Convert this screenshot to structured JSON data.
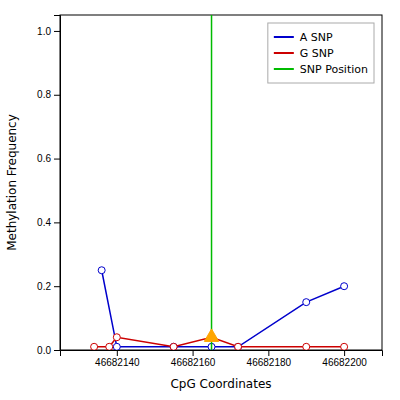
{
  "chart_data": {
    "type": "line",
    "xlabel": "CpG Coordinates",
    "ylabel": "Methylation Frequency",
    "xlim": [
      46682125,
      46682210
    ],
    "ylim": [
      0.0,
      1.05
    ],
    "xticks": [
      46682140,
      46682160,
      46682180,
      46682200
    ],
    "yticks": [
      {
        "value": 0.0,
        "label": "0.0"
      },
      0.2,
      0.4,
      0.6,
      0.8,
      {
        "value": 1.0,
        "label": "1.0"
      }
    ],
    "legend": "upper right",
    "series": [
      {
        "name": "A SNP",
        "type": "line",
        "color": "#0000CC",
        "marker": "circle",
        "x": [
          46682136,
          46682140,
          46682155,
          46682165,
          46682172,
          46682190,
          46682200
        ],
        "values": [
          0.25,
          0.01,
          0.01,
          0.01,
          0.01,
          0.15,
          0.2
        ]
      },
      {
        "name": "G SNP",
        "type": "line",
        "color": "#CC0000",
        "marker": "circle",
        "x": [
          46682134,
          46682138,
          46682140,
          46682155,
          46682165,
          46682172,
          46682190,
          46682200
        ],
        "values": [
          0.01,
          0.01,
          0.04,
          0.01,
          0.04,
          0.01,
          0.01,
          0.01
        ]
      },
      {
        "name": "SNP Position",
        "type": "vline",
        "color": "#00BB00",
        "x": [
          46682165
        ]
      },
      {
        "type": "scatter",
        "color": "#FFA500",
        "marker": "triangle",
        "x": [
          46682165
        ],
        "values": [
          0.04
        ]
      }
    ]
  }
}
